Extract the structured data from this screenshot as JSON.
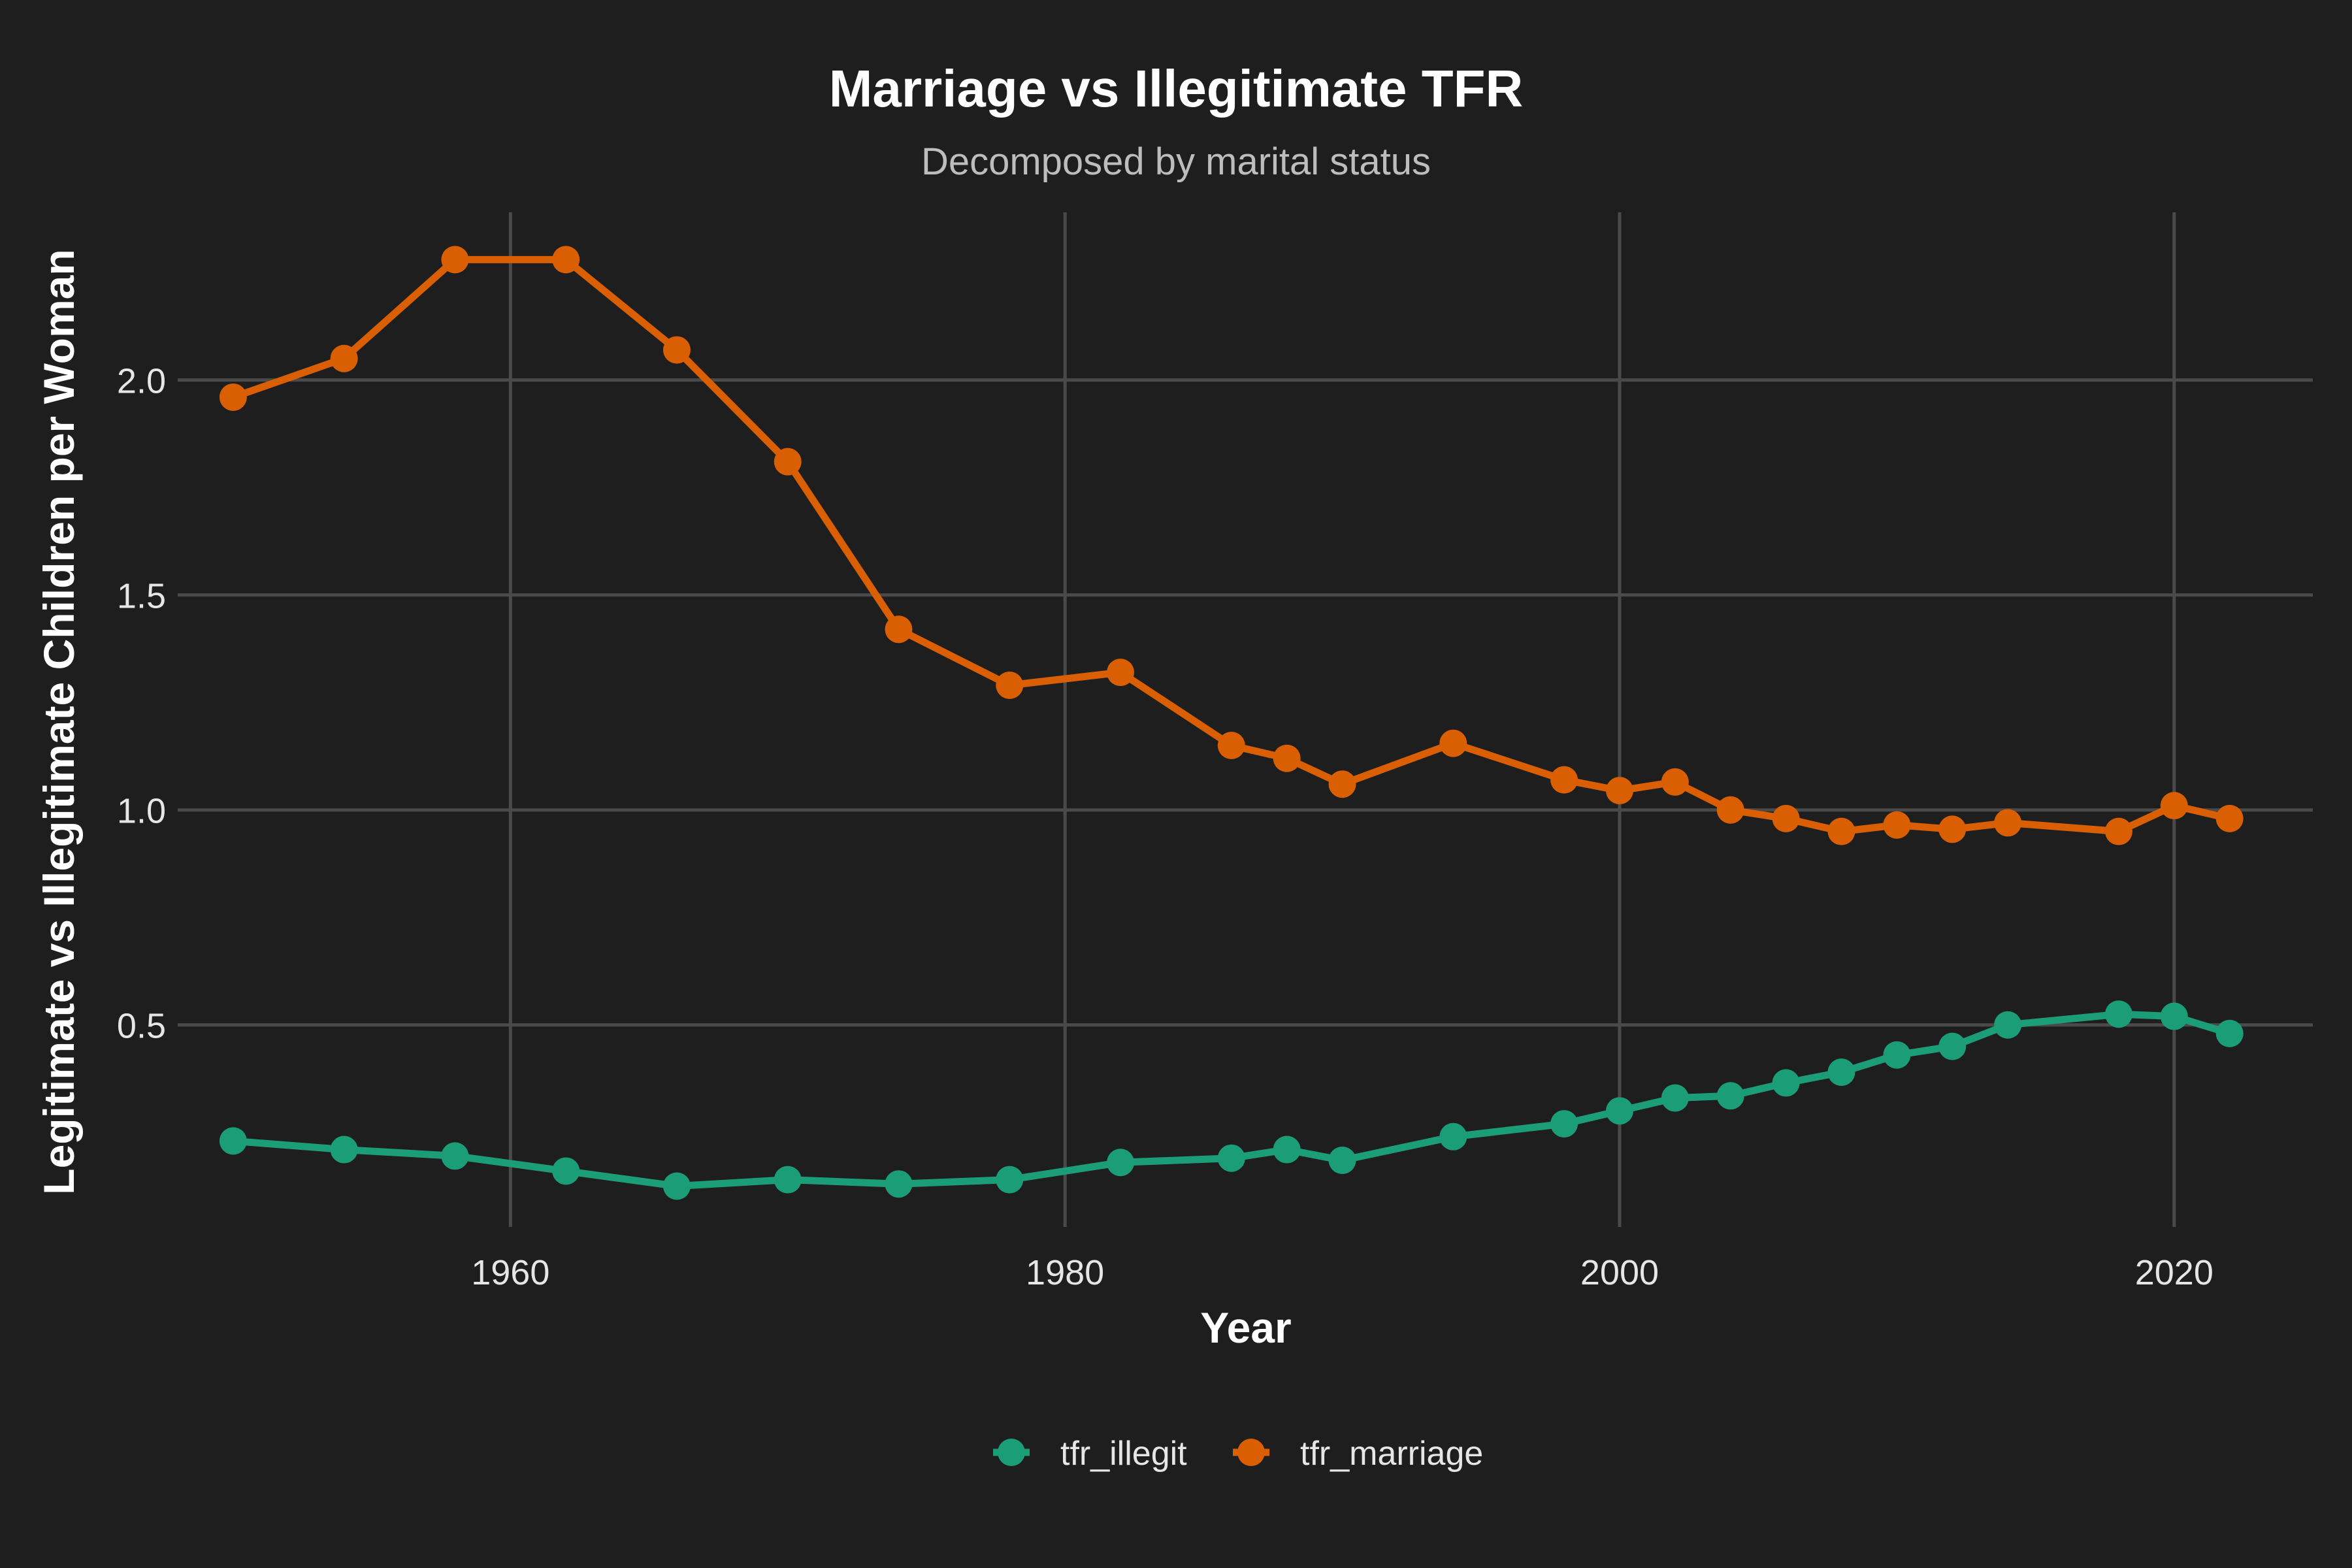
{
  "colors": {
    "background": "#1e1e1e",
    "grid": "#4a4a4a",
    "tfr_illegit": "#1b9e77",
    "tfr_marriage": "#d95f02"
  },
  "chart_data": {
    "type": "line",
    "title": "Marriage vs Illegitimate TFR",
    "subtitle": "Decomposed by marital status",
    "xlabel": "Year",
    "ylabel": "Legitimate vs Illegitimate Children per Woman",
    "xlim": [
      1948,
      2025
    ],
    "ylim": [
      0.03,
      2.39
    ],
    "xticks": [
      1960,
      1980,
      2000,
      2020
    ],
    "yticks": [
      0.5,
      1.0,
      1.5,
      2.0
    ],
    "ytick_labels": [
      "0.5",
      "1.0",
      "1.5",
      "2.0"
    ],
    "grid": true,
    "legend_position": "bottom",
    "series": [
      {
        "name": "tfr_illegit",
        "color": "#1b9e77",
        "x": [
          1950,
          1954,
          1958,
          1962,
          1966,
          1970,
          1974,
          1978,
          1982,
          1986,
          1988,
          1990,
          1994,
          1998,
          2000,
          2002,
          2004,
          2006,
          2008,
          2010,
          2012,
          2014,
          2018,
          2020,
          2022
        ],
        "y": [
          0.23,
          0.21,
          0.195,
          0.16,
          0.125,
          0.14,
          0.13,
          0.14,
          0.18,
          0.19,
          0.21,
          0.185,
          0.24,
          0.27,
          0.3,
          0.33,
          0.335,
          0.365,
          0.39,
          0.43,
          0.45,
          0.5,
          0.525,
          0.52,
          0.48
        ]
      },
      {
        "name": "tfr_marriage",
        "color": "#d95f02",
        "x": [
          1950,
          1954,
          1958,
          1962,
          1966,
          1970,
          1974,
          1978,
          1982,
          1986,
          1988,
          1990,
          1994,
          1998,
          2000,
          2002,
          2004,
          2006,
          2008,
          2010,
          2012,
          2014,
          2018,
          2020,
          2022
        ],
        "y": [
          1.96,
          2.05,
          2.28,
          2.28,
          2.07,
          1.81,
          1.42,
          1.29,
          1.32,
          1.15,
          1.12,
          1.06,
          1.155,
          1.07,
          1.045,
          1.065,
          1.0,
          0.98,
          0.95,
          0.965,
          0.955,
          0.97,
          0.95,
          1.01,
          0.98
        ]
      }
    ]
  }
}
